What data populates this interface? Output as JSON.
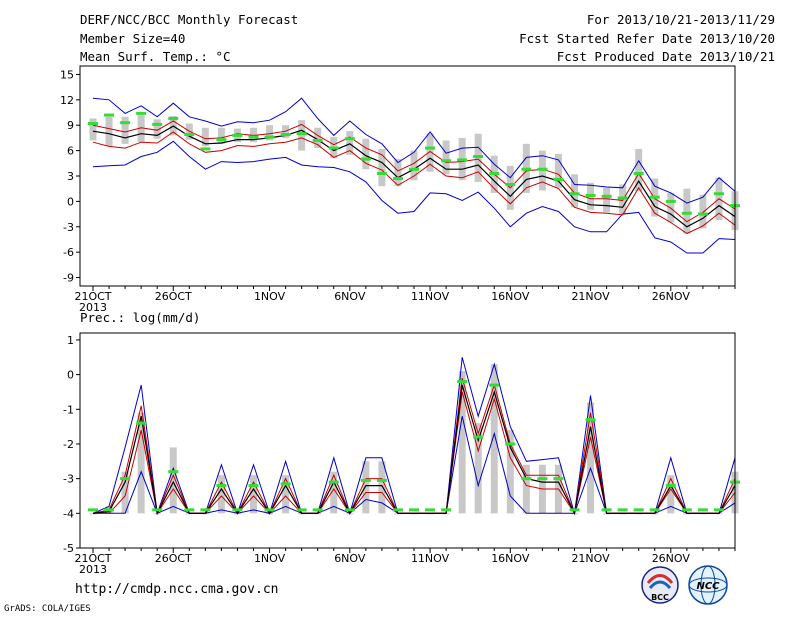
{
  "header": {
    "title": "DERF/NCC/BCC Monthly Forecast",
    "member_size": "Member Size=40",
    "variable": "Mean Surf. Temp.: °C",
    "period": "For 2013/10/21-2013/11/29",
    "started": "Fcst Started Refer Date 2013/10/20",
    "produced": "Fcst Produced Date 2013/10/21"
  },
  "footer": {
    "url": "http://cmdp.ncc.cma.gov.cn",
    "credit": "GrADS: COLA/IGES",
    "logo_bcc": "BCC",
    "logo_ncc": "NCC"
  },
  "colors": {
    "envelope": "#0000cc",
    "percentile": "#cc0000",
    "mean": "#000000",
    "spread_bar": "#c8c8c8",
    "median_mark": "#33dd33"
  },
  "chart_data": [
    {
      "type": "line",
      "title": "Mean Surf. Temp.: °C",
      "ylim": [
        -10,
        16
      ],
      "yticks": [
        -9,
        -6,
        -3,
        0,
        3,
        6,
        9,
        12,
        15
      ],
      "x_tick_labels": [
        "21OCT",
        "26OCT",
        "1NOV",
        "6NOV",
        "11NOV",
        "16NOV",
        "21NOV",
        "26NOV"
      ],
      "x_tick_day_index": [
        0,
        5,
        11,
        16,
        21,
        26,
        31,
        36
      ],
      "year_label": "2013",
      "grid": false,
      "series": {
        "max": [
          12.2,
          12.0,
          10.4,
          11.3,
          10.0,
          11.6,
          10.0,
          9.5,
          8.9,
          9.4,
          9.3,
          9.6,
          10.6,
          12.2,
          9.8,
          7.8,
          9.5,
          7.9,
          6.8,
          4.6,
          5.8,
          8.2,
          5.7,
          6.3,
          6.4,
          4.4,
          2.8,
          5.2,
          5.4,
          4.9,
          2.0,
          1.9,
          1.7,
          1.6,
          4.8,
          1.8,
          1.0,
          -0.2,
          0.5,
          2.8,
          1.2
        ],
        "p75": [
          9.0,
          8.6,
          8.2,
          8.7,
          8.4,
          9.5,
          8.3,
          7.4,
          7.5,
          8.0,
          7.8,
          8.0,
          8.3,
          9.1,
          7.8,
          6.7,
          7.6,
          6.3,
          5.5,
          3.6,
          4.5,
          5.9,
          4.6,
          4.7,
          5.0,
          3.2,
          1.6,
          3.6,
          3.8,
          3.2,
          1.0,
          0.3,
          0.3,
          0.1,
          3.3,
          0.3,
          -0.8,
          -2.4,
          -1.3,
          0.3,
          -0.9
        ],
        "mean": [
          8.3,
          8.0,
          7.5,
          8.0,
          7.8,
          8.9,
          7.7,
          6.8,
          6.9,
          7.3,
          7.3,
          7.5,
          7.8,
          8.4,
          7.3,
          6.0,
          6.8,
          5.4,
          4.6,
          2.8,
          3.8,
          5.1,
          3.8,
          3.8,
          4.3,
          2.4,
          0.6,
          2.6,
          3.0,
          2.4,
          0.2,
          -0.4,
          -0.5,
          -0.7,
          2.4,
          -0.6,
          -1.5,
          -3.0,
          -2.0,
          -0.5,
          -1.8
        ],
        "p25": [
          7.0,
          6.5,
          6.3,
          7.0,
          6.9,
          8.2,
          6.8,
          5.8,
          6.0,
          6.6,
          6.5,
          6.8,
          7.0,
          7.5,
          6.7,
          5.2,
          6.0,
          4.5,
          3.7,
          1.9,
          3.0,
          4.4,
          3.0,
          2.8,
          3.5,
          1.5,
          -0.3,
          1.6,
          2.3,
          1.5,
          -0.7,
          -1.3,
          -1.4,
          -1.6,
          1.6,
          -1.4,
          -2.5,
          -3.8,
          -2.9,
          -1.4,
          -2.8
        ],
        "min": [
          4.1,
          4.2,
          4.3,
          5.3,
          5.8,
          7.1,
          5.3,
          3.8,
          4.7,
          4.6,
          4.7,
          5.0,
          5.2,
          4.3,
          4.1,
          4.0,
          3.5,
          2.3,
          0.1,
          -1.4,
          -1.2,
          1.0,
          0.9,
          0.1,
          1.1,
          -0.8,
          -3.0,
          -1.4,
          -0.6,
          -1.2,
          -3.0,
          -3.6,
          -3.6,
          -1.5,
          -1.3,
          -4.3,
          -4.8,
          -6.1,
          -6.1,
          -4.4,
          -4.5
        ],
        "bar_top": [
          9.8,
          10.0,
          10.0,
          10.2,
          9.7,
          10.1,
          9.2,
          8.7,
          8.7,
          8.6,
          8.7,
          9.0,
          9.0,
          9.6,
          8.7,
          7.6,
          8.3,
          7.4,
          6.2,
          5.0,
          6.0,
          8.0,
          7.2,
          7.5,
          8.0,
          5.4,
          4.2,
          6.8,
          6.0,
          5.6,
          3.2,
          2.2,
          1.6,
          2.0,
          6.2,
          2.7,
          1.0,
          1.5,
          0.8,
          2.8,
          1.2
        ],
        "bar_bottom": [
          7.2,
          6.5,
          6.8,
          7.0,
          7.4,
          7.8,
          7.3,
          6.5,
          6.8,
          7.0,
          7.0,
          7.2,
          7.5,
          6.0,
          6.3,
          5.1,
          5.5,
          3.8,
          1.8,
          1.8,
          2.5,
          3.5,
          3.2,
          2.5,
          2.3,
          1.0,
          -1.0,
          1.0,
          1.3,
          1.6,
          -0.7,
          -1.0,
          -1.3,
          -1.5,
          1.2,
          -1.8,
          -2.5,
          -3.8,
          -3.2,
          -2.2,
          -3.4
        ],
        "median": [
          9.2,
          10.2,
          9.3,
          10.4,
          9.1,
          9.8,
          7.9,
          6.2,
          7.3,
          7.8,
          7.6,
          7.6,
          7.9,
          8.0,
          7.2,
          6.3,
          7.4,
          5.0,
          3.3,
          2.7,
          3.8,
          6.3,
          4.8,
          4.9,
          5.3,
          3.3,
          2.0,
          3.8,
          3.8,
          2.6,
          0.9,
          0.7,
          0.6,
          0.4,
          3.3,
          0.5,
          0.0,
          -1.4,
          -1.5,
          0.9,
          -0.5
        ]
      }
    },
    {
      "type": "line",
      "title": "Prec.: log(mm/d)",
      "ylim": [
        -5,
        1.2
      ],
      "yticks": [
        -5,
        -4,
        -3,
        -2,
        -1,
        0,
        1
      ],
      "x_tick_labels": [
        "21OCT",
        "26OCT",
        "1NOV",
        "6NOV",
        "11NOV",
        "16NOV",
        "21NOV",
        "26NOV"
      ],
      "x_tick_day_index": [
        0,
        5,
        11,
        16,
        21,
        26,
        31,
        36
      ],
      "year_label": "2013",
      "grid": false,
      "series": {
        "max": [
          -4,
          -3.8,
          -2.1,
          -0.3,
          -4,
          -2.7,
          -4,
          -4,
          -2.6,
          -4,
          -2.6,
          -4,
          -2.5,
          -4,
          -4,
          -2.4,
          -4,
          -2.4,
          -2.4,
          -4,
          -4,
          -4,
          -4,
          0.5,
          -1.2,
          0.3,
          -1.5,
          -2.5,
          -2.45,
          -2.4,
          -4,
          -0.6,
          -4,
          -4,
          -4,
          -4,
          -2.4,
          -4,
          -4,
          -4,
          -2.4
        ],
        "p75": [
          -4,
          -3.9,
          -2.9,
          -0.9,
          -4,
          -2.9,
          -4,
          -4,
          -3.1,
          -4,
          -3.1,
          -4,
          -3.0,
          -4,
          -4,
          -2.9,
          -4,
          -3.0,
          -3.0,
          -4,
          -4,
          -4,
          -4,
          -0.1,
          -1.7,
          -0.3,
          -2.0,
          -2.9,
          -2.9,
          -2.9,
          -4,
          -1.1,
          -4,
          -4,
          -4,
          -4,
          -3.0,
          -4,
          -4,
          -4,
          -3.0
        ],
        "mean": [
          -4,
          -3.95,
          -3.1,
          -1.2,
          -4,
          -3.1,
          -4,
          -4,
          -3.3,
          -4,
          -3.3,
          -4,
          -3.2,
          -4,
          -4,
          -3.1,
          -4,
          -3.2,
          -3.2,
          -4,
          -4,
          -4,
          -4,
          -0.3,
          -1.9,
          -0.5,
          -2.1,
          -3.0,
          -3.1,
          -3.1,
          -4,
          -1.5,
          -4,
          -4,
          -4,
          -4,
          -3.2,
          -4,
          -4,
          -4,
          -3.2
        ],
        "p25": [
          -4,
          -4,
          -3.5,
          -1.6,
          -4,
          -3.3,
          -4,
          -4,
          -3.5,
          -4,
          -3.5,
          -4,
          -3.5,
          -4,
          -4,
          -3.3,
          -4,
          -3.4,
          -3.4,
          -4,
          -4,
          -4,
          -4,
          -0.5,
          -2.2,
          -0.7,
          -2.4,
          -3.2,
          -3.3,
          -3.3,
          -4,
          -1.8,
          -4,
          -4,
          -4,
          -4,
          -3.3,
          -4,
          -4,
          -4,
          -3.4
        ],
        "min": [
          -4,
          -4,
          -4,
          -2.8,
          -4,
          -3.8,
          -4,
          -4,
          -3.9,
          -4,
          -3.9,
          -4,
          -3.8,
          -4,
          -4,
          -3.8,
          -4,
          -3.6,
          -3.7,
          -4,
          -4,
          -4,
          -4,
          -1.2,
          -3.2,
          -1.7,
          -3.5,
          -4,
          -4,
          -4,
          -4,
          -2.7,
          -4,
          -4,
          -4,
          -4,
          -3.8,
          -4,
          -4,
          -4,
          -3.7
        ],
        "bar_top": [
          -4,
          -3.8,
          -2.8,
          -1.1,
          -4,
          -2.1,
          -4,
          -4,
          -2.9,
          -4,
          -2.9,
          -4,
          -2.9,
          -4,
          -4,
          -2.8,
          -4,
          -2.5,
          -2.5,
          -4,
          -4,
          -4,
          -4,
          0.1,
          -1.4,
          0.3,
          -1.6,
          -2.6,
          -2.6,
          -2.6,
          -4,
          -0.8,
          -4,
          -4,
          -4,
          -4,
          -2.9,
          -4,
          -4,
          -4,
          -2.8
        ],
        "bar_bottom": [
          -4,
          -4,
          -4,
          -4,
          -4,
          -4,
          -4,
          -4,
          -4,
          -4,
          -4,
          -4,
          -4,
          -4,
          -4,
          -4,
          -4,
          -4,
          -4,
          -4,
          -4,
          -4,
          -4,
          -4,
          -4,
          -4,
          -4,
          -4,
          -4,
          -4,
          -4,
          -4,
          -4,
          -4,
          -4,
          -4,
          -4,
          -4,
          -4,
          -4,
          -4
        ],
        "median": [
          -3.9,
          -3.9,
          -3.0,
          -1.4,
          -3.9,
          -2.8,
          -3.9,
          -3.9,
          -3.2,
          -3.9,
          -3.2,
          -3.9,
          -3.15,
          -3.9,
          -3.9,
          -3.1,
          -3.9,
          -3.05,
          -3.05,
          -3.9,
          -3.9,
          -3.9,
          -3.9,
          -0.2,
          -1.8,
          -0.3,
          -2.0,
          -3.0,
          -3.0,
          -3.0,
          -3.9,
          -1.3,
          -3.9,
          -3.9,
          -3.9,
          -3.9,
          -3.2,
          -3.9,
          -3.9,
          -3.9,
          -3.1
        ]
      }
    }
  ]
}
